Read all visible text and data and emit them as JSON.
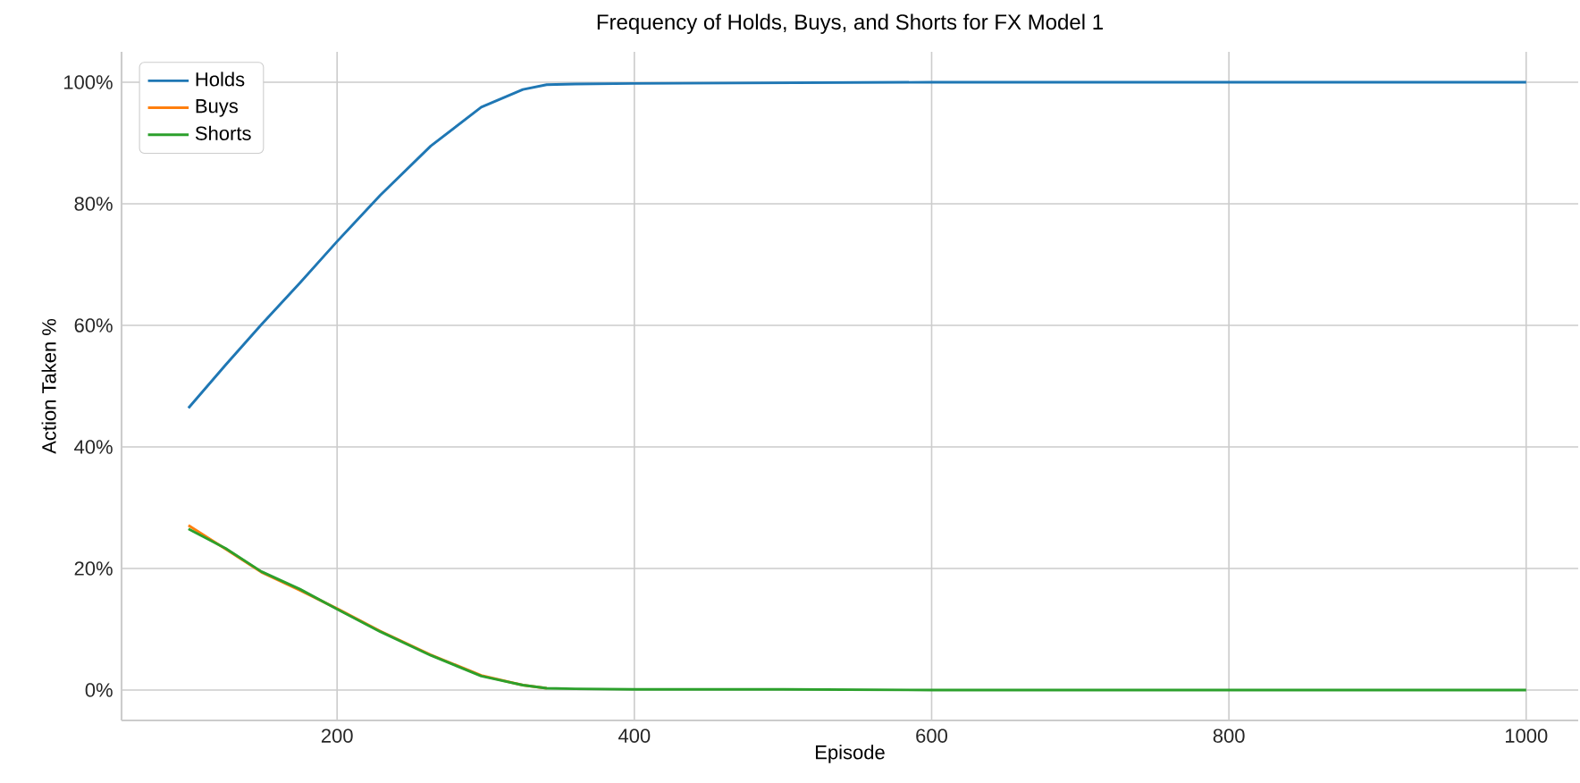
{
  "chart_data": {
    "type": "line",
    "title": "Frequency of Holds, Buys, and Shorts for FX Model 1",
    "xlabel": "Episode",
    "ylabel": "Action Taken %",
    "x": [
      100,
      125,
      149,
      175,
      200,
      229,
      263,
      297,
      325,
      341,
      360,
      400,
      500,
      600,
      800,
      1000
    ],
    "series": [
      {
        "name": "Holds",
        "color": "#1f77b4",
        "values": [
          46.4,
          53.5,
          60.1,
          67,
          73.8,
          81.4,
          89.5,
          95.9,
          98.8,
          99.6,
          99.7,
          99.8,
          99.9,
          100,
          100,
          100
        ]
      },
      {
        "name": "Buys",
        "color": "#ff7f0e",
        "values": [
          27.1,
          23.2,
          19.4,
          16.4,
          13.4,
          9.7,
          5.8,
          2.4,
          0.8,
          0.3,
          null,
          null,
          null,
          null,
          null,
          null
        ]
      },
      {
        "name": "Shorts",
        "color": "#2ca02c",
        "values": [
          26.5,
          23.3,
          19.5,
          16.6,
          13.3,
          9.6,
          5.7,
          2.3,
          0.8,
          0.3,
          0.2,
          0.1,
          0.1,
          0,
          0,
          0
        ]
      }
    ],
    "xlim": [
      55,
      1035
    ],
    "xticks": [
      200,
      400,
      600,
      800,
      1000
    ],
    "ylim": [
      -5,
      105
    ],
    "yticks": [
      {
        "value": 0,
        "label": "0%"
      },
      {
        "value": 20,
        "label": "20%"
      },
      {
        "value": 40,
        "label": "40%"
      },
      {
        "value": 60,
        "label": "60%"
      },
      {
        "value": 80,
        "label": "80%"
      },
      {
        "value": 100,
        "label": "100%"
      }
    ],
    "grid": true,
    "legend": "top left"
  }
}
